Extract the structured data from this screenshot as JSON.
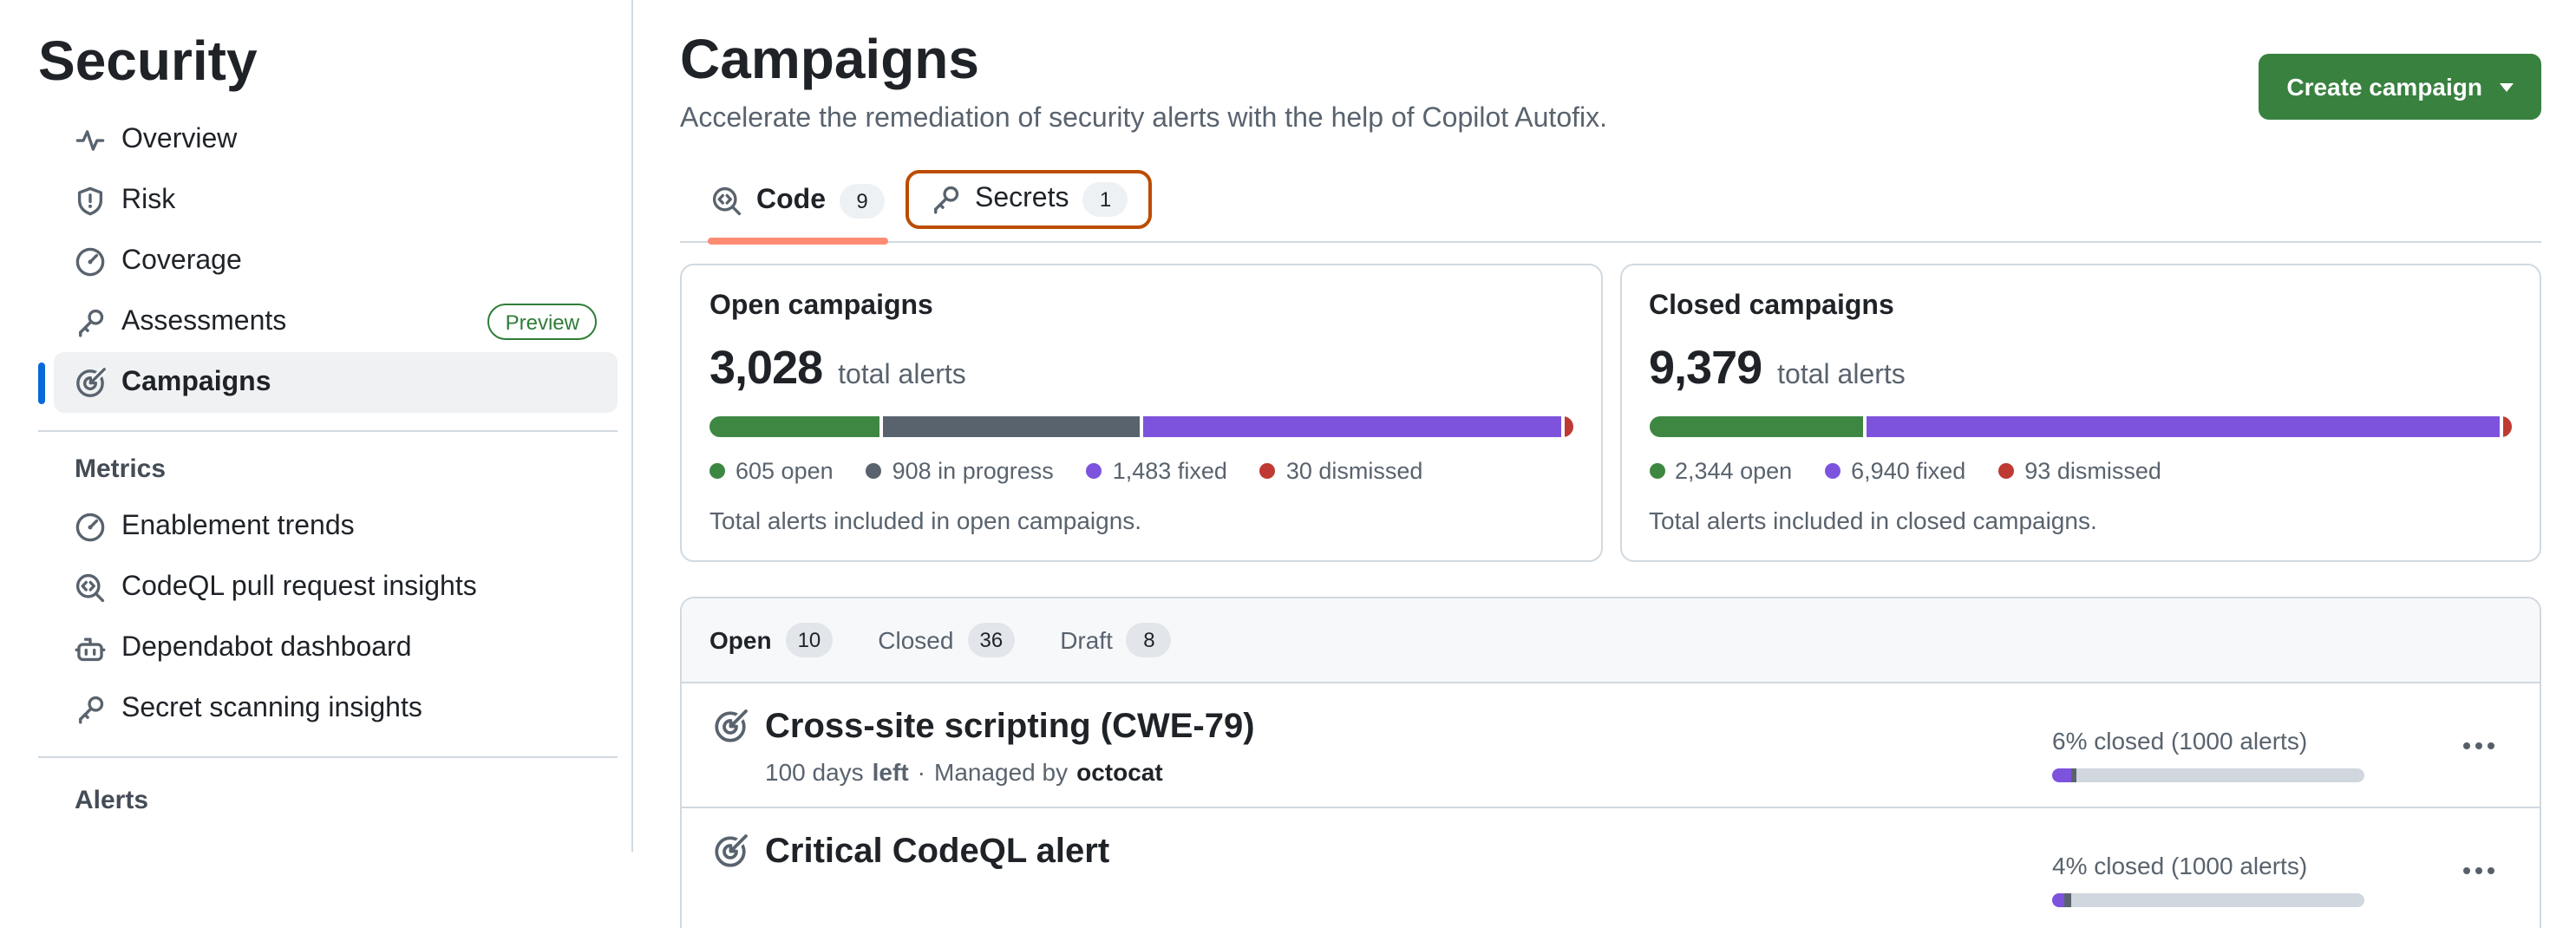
{
  "colors": {
    "accent_blue": "#0969da",
    "button_green": "#38813f",
    "preview_green": "#2f7d38",
    "underline_coral": "#fd8c73",
    "focus_orange": "#bc4c00",
    "open_green": "#3e8742",
    "in_progress_gray": "#59636e",
    "fixed_purple": "#7d53dd",
    "dismissed_red": "#bf3a32",
    "track_gray": "#d0d7de"
  },
  "sidebar": {
    "title": "Security",
    "nav": [
      {
        "label": "Overview"
      },
      {
        "label": "Risk"
      },
      {
        "label": "Coverage"
      },
      {
        "label": "Assessments",
        "badge": "Preview"
      },
      {
        "label": "Campaigns",
        "selected": true
      }
    ],
    "metrics_heading": "Metrics",
    "metrics_items": [
      {
        "label": "Enablement trends"
      },
      {
        "label": "CodeQL pull request insights"
      },
      {
        "label": "Dependabot dashboard"
      },
      {
        "label": "Secret scanning insights"
      }
    ],
    "alerts_heading": "Alerts"
  },
  "header": {
    "title": "Campaigns",
    "subtitle": "Accelerate the remediation of security alerts with the help of Copilot Autofix.",
    "create_button_label": "Create campaign"
  },
  "alert_type_tabs": {
    "code": {
      "label": "Code",
      "count": "9"
    },
    "secrets": {
      "label": "Secrets",
      "count": "1"
    }
  },
  "summary_cards": [
    {
      "title": "Open campaigns",
      "total": "3,028",
      "total_suffix": "total alerts",
      "caption": "Total alerts included in open campaigns.",
      "segments": [
        {
          "label": "605 open",
          "value": 605,
          "pct": 20,
          "color": "#3e8742"
        },
        {
          "label": "908 in progress",
          "value": 908,
          "pct": 30,
          "color": "#59636e"
        },
        {
          "label": "1,483 fixed",
          "value": 1483,
          "pct": 49,
          "color": "#7d53dd"
        },
        {
          "label": "30 dismissed",
          "value": 30,
          "pct": 1,
          "color": "#bf3a32"
        }
      ]
    },
    {
      "title": "Closed campaigns",
      "total": "9,379",
      "total_suffix": "total alerts",
      "caption": "Total alerts included in closed campaigns.",
      "segments": [
        {
          "label": "2,344 open",
          "value": 2344,
          "pct": 25,
          "color": "#3e8742"
        },
        {
          "label": "6,940 fixed",
          "value": 6940,
          "pct": 74,
          "color": "#7d53dd"
        },
        {
          "label": "93 dismissed",
          "value": 93,
          "pct": 1,
          "color": "#bf3a32"
        }
      ]
    }
  ],
  "campaign_list": {
    "tabs": [
      {
        "label": "Open",
        "count": "10",
        "active": true
      },
      {
        "label": "Closed",
        "count": "36"
      },
      {
        "label": "Draft",
        "count": "8"
      }
    ],
    "rows": [
      {
        "title": "Cross-site scripting (CWE-79)",
        "days": "100 days",
        "days_emphasis": "left",
        "separator": "·",
        "managed_by": "Managed by",
        "manager": "octocat",
        "status": "6% closed (1000 alerts)",
        "progress": {
          "closed_pct": 6,
          "pending_pct": 2
        }
      },
      {
        "title": "Critical CodeQL alert",
        "status": "4% closed (1000 alerts)",
        "progress": {
          "closed_pct": 4,
          "pending_pct": 2
        }
      }
    ]
  }
}
